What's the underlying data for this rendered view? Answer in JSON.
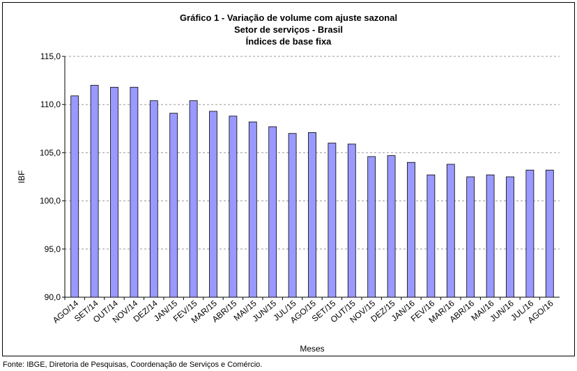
{
  "chart_data": {
    "type": "bar",
    "title": "Gráfico 1 - Variação de volume com ajuste sazonal",
    "subtitle": [
      "Setor de serviços - Brasil",
      "Índices de base fixa"
    ],
    "x_label": "Meses",
    "y_label": "IBF",
    "categories": [
      "AGO/14",
      "SET/14",
      "OUT/14",
      "NOV/14",
      "DEZ/14",
      "JAN/15",
      "FEV/15",
      "MAR/15",
      "ABR/15",
      "MAI/15",
      "JUN/15",
      "JUL/15",
      "AGO/15",
      "SET/15",
      "OUT/15",
      "NOV/15",
      "DEZ/15",
      "JAN/16",
      "FEV/16",
      "MAR/16",
      "ABR/16",
      "MAI/16",
      "JUN/16",
      "JUL/16",
      "AGO/16"
    ],
    "values": [
      110.9,
      112.0,
      111.8,
      111.8,
      110.4,
      109.1,
      110.4,
      109.3,
      108.8,
      108.2,
      107.7,
      107.0,
      107.1,
      106.0,
      105.9,
      104.6,
      104.7,
      104.0,
      102.7,
      103.8,
      102.5,
      102.7,
      102.5,
      103.2,
      103.2
    ],
    "color": "#9999ff",
    "ylim": [
      90,
      115
    ],
    "yticks": [
      {
        "value": 90,
        "label": "90,0"
      },
      {
        "value": 95,
        "label": "95,0"
      },
      {
        "value": 100,
        "label": "100,0"
      },
      {
        "value": 105,
        "label": "105,0"
      },
      {
        "value": 110,
        "label": "110,0"
      },
      {
        "value": 115,
        "label": "115,0"
      }
    ],
    "grid": true,
    "source": "Fonte: IBGE, Diretoria de Pesquisas, Coordenação de Serviços e Comércio."
  }
}
